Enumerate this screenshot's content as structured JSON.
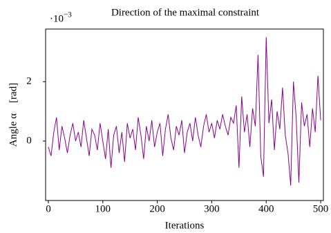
{
  "chart_data": {
    "type": "line",
    "title": "Direction of the maximal constraint",
    "multiplier": "·10",
    "multiplier_exponent": "−3",
    "x_label": "Iterations",
    "y_label": "Angle α    [rad]",
    "x": [
      0,
      5,
      10,
      15,
      20,
      25,
      30,
      35,
      40,
      45,
      50,
      55,
      60,
      65,
      70,
      75,
      80,
      85,
      90,
      95,
      100,
      105,
      110,
      115,
      120,
      125,
      130,
      135,
      140,
      145,
      150,
      155,
      160,
      165,
      170,
      175,
      180,
      185,
      190,
      195,
      200,
      205,
      210,
      215,
      220,
      225,
      230,
      235,
      240,
      245,
      250,
      255,
      260,
      265,
      270,
      275,
      280,
      285,
      290,
      295,
      300,
      305,
      310,
      315,
      320,
      325,
      330,
      335,
      340,
      345,
      350,
      355,
      360,
      365,
      370,
      375,
      380,
      385,
      390,
      395,
      400,
      405,
      410,
      415,
      420,
      425,
      430,
      435,
      440,
      445,
      450,
      455,
      460,
      465,
      470,
      475,
      480,
      485,
      490,
      495,
      500
    ],
    "series": [
      {
        "name": "alpha",
        "color": "#880088",
        "values": [
          -0.2,
          -0.5,
          0.3,
          0.8,
          -0.3,
          0.5,
          0.1,
          -0.4,
          0.2,
          0.6,
          0.0,
          0.3,
          -0.2,
          0.7,
          0.1,
          -0.5,
          0.4,
          0.2,
          -0.3,
          0.6,
          0.0,
          -0.6,
          0.4,
          -0.9,
          0.2,
          0.5,
          -0.4,
          0.3,
          -0.7,
          0.6,
          0.1,
          0.4,
          -0.3,
          0.8,
          0.2,
          -0.6,
          0.5,
          0.0,
          0.7,
          -0.2,
          0.3,
          0.6,
          -0.5,
          0.4,
          0.9,
          0.1,
          -0.3,
          0.5,
          0.2,
          0.7,
          -0.4,
          0.3,
          0.6,
          0.0,
          0.8,
          0.2,
          -0.2,
          0.5,
          0.9,
          0.3,
          0.6,
          0.1,
          0.7,
          0.4,
          0.9,
          0.5,
          0.2,
          0.8,
          0.6,
          1.2,
          -0.9,
          1.5,
          0.3,
          0.9,
          -0.2,
          1.1,
          0.5,
          2.9,
          -0.5,
          -1.2,
          3.5,
          0.6,
          1.4,
          -0.3,
          1.0,
          0.4,
          1.8,
          0.2,
          -0.4,
          -1.5,
          2.0,
          0.8,
          -1.4,
          1.3,
          0.5,
          0.9,
          -0.2,
          1.1,
          0.3,
          2.2,
          0.7
        ]
      }
    ],
    "xlim": [
      -5,
      505
    ],
    "ylim": [
      -2.0,
      3.77
    ],
    "xticks": [
      0,
      100,
      200,
      300,
      400,
      500
    ],
    "yticks": [
      0,
      2
    ]
  }
}
